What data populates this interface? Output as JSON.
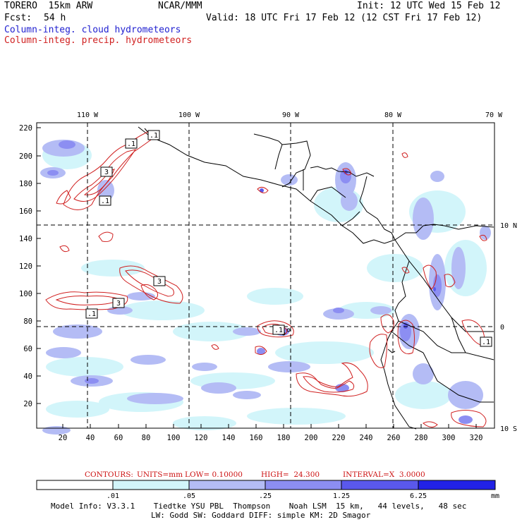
{
  "header": {
    "model": "TORERO  15km ARW",
    "org": "NCAR/MMM",
    "init": "Init: 12 UTC Wed 15 Feb 12",
    "fcst_label": "Fcst:",
    "fcst_value": "54 h",
    "valid": "Valid: 18 UTC Fri 17 Feb 12 (12 CST Fri 17 Feb 12)",
    "field_cloud": "Column-integ. cloud hydrometeors",
    "field_precip": "Column-integ. precip. hydrometeors"
  },
  "axes": {
    "y_ticks": [
      "220",
      "200",
      "180",
      "160",
      "140",
      "120",
      "100",
      "80",
      "60",
      "40",
      "20"
    ],
    "x_ticks": [
      "20",
      "40",
      "60",
      "80",
      "100",
      "120",
      "140",
      "160",
      "180",
      "200",
      "220",
      "240",
      "260",
      "280",
      "300",
      "320"
    ],
    "lon_labels": [
      "110 W",
      "100 W",
      "90 W",
      "80 W",
      "70 W"
    ],
    "lat_labels": [
      "10 N",
      "0",
      "10 S"
    ]
  },
  "contour_labels": [
    ".1",
    ".1",
    ".1",
    ".1",
    "3",
    ".1",
    "3",
    "3",
    ".1"
  ],
  "contours_info": {
    "label": "CONTOURS:",
    "units": "UNITS=mm",
    "low": "LOW= 0.10000",
    "high": "HIGH=  24.300",
    "interval": "INTERVAL=X  3.0000"
  },
  "colorbar": {
    "labels": [
      ".01",
      ".05",
      ".25",
      "1.25",
      "6.25"
    ],
    "unit": "mm",
    "colors": [
      "#ffffff",
      "#d2f5fa",
      "#b4bcf5",
      "#8c8ef2",
      "#5a58ec",
      "#2222e6"
    ]
  },
  "model_info": {
    "line1": "Model Info: V3.3.1    Tiedtke YSU PBL  Thompson    Noah LSM  15 km,   44 levels,   48 sec",
    "line2": "LW: Godd SW: Goddard DIFF: simple KM: 2D Smagor"
  },
  "colors": {
    "cloud": "#1f1fd0",
    "precip": "#d02020",
    "coast": "#000000"
  }
}
